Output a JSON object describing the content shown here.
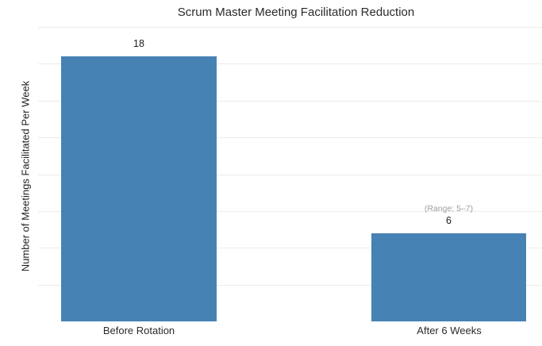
{
  "chart_data": {
    "type": "bar",
    "title": "Scrum Master Meeting Facilitation Reduction",
    "ylabel": "Number of Meetings Facilitated Per Week",
    "xlabel": "",
    "categories": [
      "Before Rotation",
      "After 6 Weeks"
    ],
    "values": [
      18,
      6
    ],
    "value_labels": [
      "18",
      "6"
    ],
    "annotations": [
      {
        "target": "After 6 Weeks",
        "text": "(Range: 5–7)"
      }
    ],
    "ylim": [
      0,
      20
    ],
    "ytick_step": 2.5,
    "y_tick_labels_visible": false,
    "grid": true,
    "legend": false,
    "colors": {
      "bar": "#4682B4",
      "grid": "#ececec",
      "annotation": "#9e9e9e",
      "text": "#2b2b2b",
      "background": "#ffffff"
    }
  }
}
